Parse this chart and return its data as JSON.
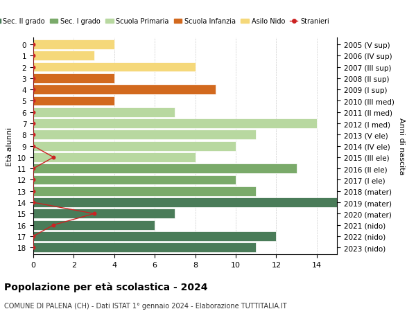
{
  "ages": [
    18,
    17,
    16,
    15,
    14,
    13,
    12,
    11,
    10,
    9,
    8,
    7,
    6,
    5,
    4,
    3,
    2,
    1,
    0
  ],
  "years": [
    "2005 (V sup)",
    "2006 (IV sup)",
    "2007 (III sup)",
    "2008 (II sup)",
    "2009 (I sup)",
    "2010 (III med)",
    "2011 (II med)",
    "2012 (I med)",
    "2013 (V ele)",
    "2014 (IV ele)",
    "2015 (III ele)",
    "2016 (II ele)",
    "2017 (I ele)",
    "2018 (mater)",
    "2019 (mater)",
    "2020 (mater)",
    "2021 (nido)",
    "2022 (nido)",
    "2023 (nido)"
  ],
  "values": [
    11,
    12,
    6,
    7,
    15,
    11,
    10,
    13,
    8,
    10,
    11,
    14,
    7,
    4,
    9,
    4,
    8,
    3,
    4
  ],
  "stranieri_x": [
    0,
    0,
    1,
    3,
    0,
    0,
    0,
    0,
    1,
    0,
    0,
    0,
    0,
    0,
    0,
    0,
    0,
    0,
    0
  ],
  "bar_colors": [
    "#4a7c59",
    "#4a7c59",
    "#4a7c59",
    "#4a7c59",
    "#4a7c59",
    "#7aaa6a",
    "#7aaa6a",
    "#7aaa6a",
    "#b8d8a0",
    "#b8d8a0",
    "#b8d8a0",
    "#b8d8a0",
    "#b8d8a0",
    "#d2691e",
    "#d2691e",
    "#d2691e",
    "#f5d87a",
    "#f5d87a",
    "#f5d87a"
  ],
  "legend_labels": [
    "Sec. II grado",
    "Sec. I grado",
    "Scuola Primaria",
    "Scuola Infanzia",
    "Asilo Nido",
    "Stranieri"
  ],
  "legend_colors": [
    "#4a7c59",
    "#7aaa6a",
    "#b8d8a0",
    "#d2691e",
    "#f5d87a",
    "#cc2222"
  ],
  "title": "Popolazione per età scolastica - 2024",
  "subtitle": "COMUNE DI PALENA (CH) - Dati ISTAT 1° gennaio 2024 - Elaborazione TUTTITALIA.IT",
  "ylabel_left": "Età alunni",
  "ylabel_right": "Anni di nascita",
  "xlim": [
    0,
    15
  ],
  "xticks": [
    0,
    2,
    4,
    6,
    8,
    10,
    12,
    14
  ],
  "bg_color": "#ffffff",
  "bar_height": 0.85,
  "grid_color": "#cccccc"
}
